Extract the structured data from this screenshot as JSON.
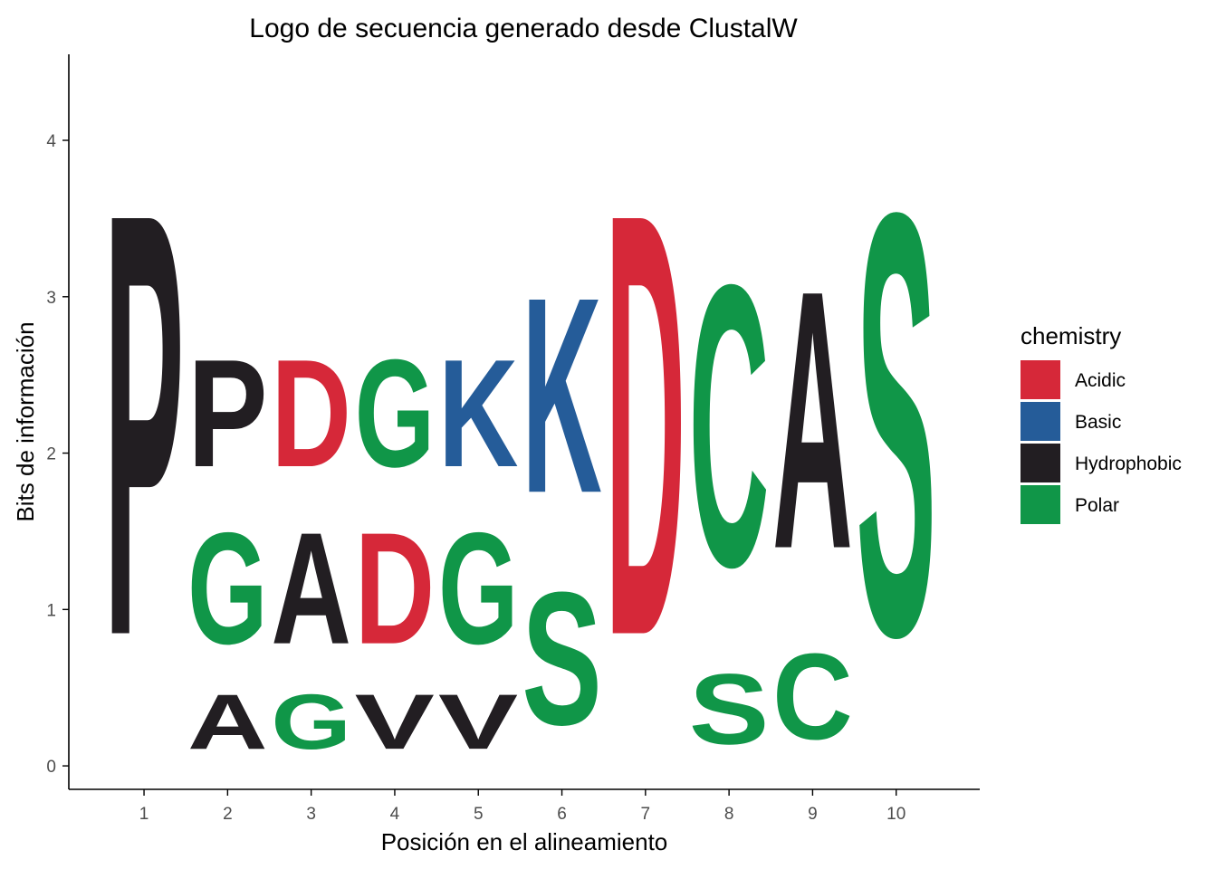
{
  "chart_data": {
    "type": "sequence-logo",
    "title": "Logo de secuencia generado desde ClustalW",
    "xlabel": "Posición en el alineamiento",
    "ylabel": "Bits de información",
    "x_ticks": [
      "1",
      "2",
      "3",
      "4",
      "5",
      "6",
      "7",
      "8",
      "9",
      "10"
    ],
    "y_ticks": [
      "0",
      "1",
      "2",
      "3",
      "4"
    ],
    "ylim": [
      -0.15,
      4.55
    ],
    "xlim": [
      0.1,
      11.0
    ],
    "grid": false,
    "legend": {
      "title": "chemistry",
      "placement": "right",
      "items": [
        {
          "label": "Acidic",
          "color": "#D62839"
        },
        {
          "label": "Basic",
          "color": "#255C99"
        },
        {
          "label": "Hydrophobic",
          "color": "#221E22"
        },
        {
          "label": "Polar",
          "color": "#109648"
        }
      ]
    },
    "positions": [
      {
        "x": 1,
        "stack": [
          {
            "letter": "P",
            "chemistry": "Hydrophobic",
            "bits": 4.32
          }
        ]
      },
      {
        "x": 2,
        "stack": [
          {
            "letter": "A",
            "chemistry": "Hydrophobic",
            "bits": 0.56
          },
          {
            "letter": "G",
            "chemistry": "Polar",
            "bits": 1.14
          },
          {
            "letter": "P",
            "chemistry": "Hydrophobic",
            "bits": 1.1
          }
        ]
      },
      {
        "x": 3,
        "stack": [
          {
            "letter": "G",
            "chemistry": "Polar",
            "bits": 0.56
          },
          {
            "letter": "A",
            "chemistry": "Hydrophobic",
            "bits": 1.14
          },
          {
            "letter": "D",
            "chemistry": "Acidic",
            "bits": 1.1
          }
        ]
      },
      {
        "x": 4,
        "stack": [
          {
            "letter": "V",
            "chemistry": "Hydrophobic",
            "bits": 0.56
          },
          {
            "letter": "D",
            "chemistry": "Acidic",
            "bits": 1.14
          },
          {
            "letter": "G",
            "chemistry": "Polar",
            "bits": 1.1
          }
        ]
      },
      {
        "x": 5,
        "stack": [
          {
            "letter": "V",
            "chemistry": "Hydrophobic",
            "bits": 0.56
          },
          {
            "letter": "G",
            "chemistry": "Polar",
            "bits": 1.14
          },
          {
            "letter": "K",
            "chemistry": "Basic",
            "bits": 1.1
          }
        ]
      },
      {
        "x": 6,
        "stack": [
          {
            "letter": "S",
            "chemistry": "Polar",
            "bits": 1.36
          },
          {
            "letter": "K",
            "chemistry": "Basic",
            "bits": 2.0
          }
        ]
      },
      {
        "x": 7,
        "stack": [
          {
            "letter": "D",
            "chemistry": "Acidic",
            "bits": 4.32
          }
        ]
      },
      {
        "x": 8,
        "stack": [
          {
            "letter": "S",
            "chemistry": "Polar",
            "bits": 0.72
          },
          {
            "letter": "C",
            "chemistry": "Polar",
            "bits": 2.88
          }
        ]
      },
      {
        "x": 9,
        "stack": [
          {
            "letter": "C",
            "chemistry": "Polar",
            "bits": 0.88
          },
          {
            "letter": "A",
            "chemistry": "Hydrophobic",
            "bits": 2.64
          }
        ]
      },
      {
        "x": 10,
        "stack": [
          {
            "letter": "S",
            "chemistry": "Polar",
            "bits": 4.32
          }
        ]
      }
    ]
  }
}
